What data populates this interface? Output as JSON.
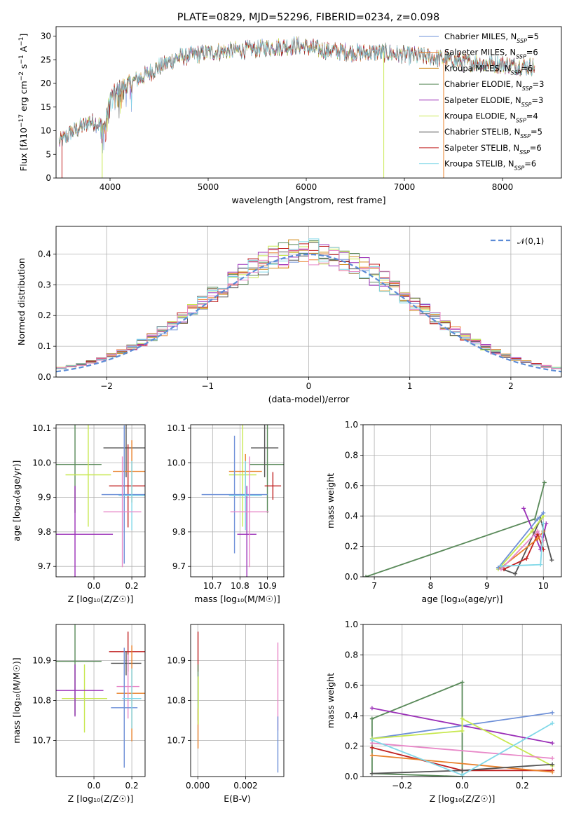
{
  "colors": {
    "Chabrier MILES": "#6e90d8",
    "Salpeter MILES": "#e8802a",
    "Kroupa MILES": "#d08a1a",
    "Chabrier ELODIE": "#5a8a5a",
    "Salpeter ELODIE": "#9b30b8",
    "Kroupa ELODIE": "#c8e850",
    "Chabrier STELIB": "#555555",
    "Salpeter STELIB": "#c02020",
    "Kroupa STELIB": "#80d8e8",
    "normal": "#5b8bd6",
    "pink": "#e888c8",
    "grid": "#b0b0b0"
  },
  "chart_data": [
    {
      "id": "spectrum",
      "type": "line",
      "title": "PLATE=0829, MJD=52296, FIBERID=0234, z=0.098",
      "xlabel": "wavelength [Angstrom, rest frame]",
      "ylabel_parts": {
        "a": "Flux [f",
        "b": "λ",
        "c": "10",
        "d": "−17",
        "e": " erg cm",
        "f": "−2",
        "g": " s",
        "h": "−1",
        "i": " A",
        "j": "−1",
        "k": "]"
      },
      "xlim": [
        3450,
        8600
      ],
      "ylim": [
        0,
        32
      ],
      "xticks": [
        4000,
        5000,
        6000,
        7000,
        8000
      ],
      "yticks": [
        0,
        5,
        10,
        15,
        20,
        25,
        30
      ],
      "grid": false,
      "legend_position": "right",
      "continuum_x": [
        3480,
        3600,
        3800,
        3950,
        4000,
        4100,
        4300,
        4500,
        4700,
        5000,
        5300,
        5600,
        5900,
        6200,
        6500,
        6800,
        7000,
        7300,
        7600,
        8000,
        8300
      ],
      "continuum_y": [
        7.5,
        9.5,
        12,
        11,
        17,
        19,
        21,
        23.5,
        25.5,
        26.5,
        27,
        27.5,
        28,
        27,
        26.5,
        26.5,
        26,
        25.5,
        24.5,
        24,
        23.5
      ],
      "dropouts": [
        {
          "series": "Salpeter STELIB",
          "x": 3510,
          "y": 0
        },
        {
          "series": "Kroupa ELODIE",
          "x": 3920,
          "y": 0
        },
        {
          "series": "Kroupa ELODIE",
          "x": 6790,
          "y": 0
        },
        {
          "series": "Salpeter MILES",
          "x": 7400,
          "y": 0
        }
      ],
      "series": [
        {
          "name": "Chabrier MILES",
          "label": "Chabrier MILES, N",
          "sub": "SSP",
          "n": "=5"
        },
        {
          "name": "Salpeter MILES",
          "label": "Salpeter MILES, N",
          "sub": "SSP",
          "n": "=6"
        },
        {
          "name": "Kroupa MILES",
          "label": "Kroupa MILES, N",
          "sub": "SSP",
          "n": "=6"
        },
        {
          "name": "Chabrier ELODIE",
          "label": "Chabrier ELODIE, N",
          "sub": "SSP",
          "n": "=3"
        },
        {
          "name": "Salpeter ELODIE",
          "label": "Salpeter ELODIE, N",
          "sub": "SSP",
          "n": "=3"
        },
        {
          "name": "Kroupa ELODIE",
          "label": "Kroupa ELODIE, N",
          "sub": "SSP",
          "n": "=4"
        },
        {
          "name": "Chabrier STELIB",
          "label": "Chabrier STELIB, N",
          "sub": "SSP",
          "n": "=5"
        },
        {
          "name": "Salpeter STELIB",
          "label": "Salpeter STELIB, N",
          "sub": "SSP",
          "n": "=6"
        },
        {
          "name": "Kroupa STELIB",
          "label": "Kroupa STELIB, N",
          "sub": "SSP",
          "n": "=6"
        }
      ]
    },
    {
      "id": "residuals",
      "type": "histogram",
      "xlabel": "(data-model)/error",
      "ylabel": "Normed distribution",
      "xlim": [
        -2.5,
        2.5
      ],
      "ylim": [
        0,
        0.49
      ],
      "xticks": [
        -2,
        -1,
        0,
        1,
        2
      ],
      "yticks": [
        0.0,
        0.1,
        0.2,
        0.3,
        0.4
      ],
      "grid": true,
      "bin_width": 0.1,
      "legend_position": "top-right",
      "legend_label": "𝒩(0,1)",
      "series_order": [
        "Chabrier MILES",
        "Salpeter MILES",
        "Kroupa MILES",
        "Chabrier ELODIE",
        "Salpeter ELODIE",
        "Kroupa ELODIE",
        "Chabrier STELIB",
        "Salpeter STELIB",
        "Kroupa STELIB",
        "pink"
      ]
    },
    {
      "id": "age_vs_Z",
      "type": "errorbar",
      "xlabel": "Z [log₁₀(Z/Z☉)]",
      "ylabel": "age  [log₁₀(age/yr)]",
      "xlim": [
        -0.2,
        0.27
      ],
      "ylim": [
        9.67,
        10.11
      ],
      "xticks": [
        0.0,
        0.2
      ],
      "yticks": [
        9.7,
        9.8,
        9.9,
        10.0,
        10.1
      ],
      "grid": true,
      "points": [
        {
          "series": "Chabrier ELODIE",
          "x": -0.1,
          "xerr": 0.14,
          "y": 9.995,
          "yerr": 0.14
        },
        {
          "series": "Kroupa ELODIE",
          "x": -0.03,
          "xerr": 0.12,
          "y": 9.965,
          "yerr": 0.15
        },
        {
          "series": "Salpeter ELODIE",
          "x": -0.1,
          "xerr": 0.2,
          "y": 9.793,
          "yerr": 0.14
        },
        {
          "series": "Chabrier STELIB",
          "x": 0.17,
          "xerr": 0.12,
          "y": 10.043,
          "yerr": 0.085
        },
        {
          "series": "Salpeter STELIB",
          "x": 0.18,
          "xerr": 0.1,
          "y": 9.933,
          "yerr": 0.12
        },
        {
          "series": "Salpeter MILES",
          "x": 0.2,
          "xerr": 0.1,
          "y": 9.975,
          "yerr": 0.09
        },
        {
          "series": "Chabrier MILES",
          "x": 0.16,
          "xerr": 0.12,
          "y": 9.908,
          "yerr": 0.2
        },
        {
          "series": "Kroupa STELIB",
          "x": 0.2,
          "xerr": 0.07,
          "y": 9.905,
          "yerr": 0.1
        },
        {
          "series": "pink",
          "x": 0.15,
          "xerr": 0.1,
          "y": 9.858,
          "yerr": 0.16
        }
      ]
    },
    {
      "id": "age_vs_mass",
      "type": "errorbar",
      "xlabel": "mass [log₁₀(M/M☉)]",
      "xlim": [
        10.62,
        10.96
      ],
      "ylim": [
        9.67,
        10.11
      ],
      "xticks": [
        10.7,
        10.8,
        10.9
      ],
      "yticks": [
        9.7,
        9.8,
        9.9,
        10.0,
        10.1
      ],
      "grid": true,
      "points": [
        {
          "series": "Chabrier ELODIE",
          "x": 10.9,
          "xerr": 0.065,
          "y": 9.995,
          "yerr": 0.14
        },
        {
          "series": "Kroupa ELODIE",
          "x": 10.81,
          "xerr": 0.05,
          "y": 9.965,
          "yerr": 0.15
        },
        {
          "series": "Salpeter ELODIE",
          "x": 10.825,
          "xerr": 0.035,
          "y": 9.793,
          "yerr": 0.14
        },
        {
          "series": "Chabrier STELIB",
          "x": 10.89,
          "xerr": 0.05,
          "y": 10.043,
          "yerr": 0.085
        },
        {
          "series": "Salpeter STELIB",
          "x": 10.92,
          "xerr": 0.03,
          "y": 9.933,
          "yerr": 0.04
        },
        {
          "series": "Salpeter MILES",
          "x": 10.82,
          "xerr": 0.06,
          "y": 9.975,
          "yerr": 0.05
        },
        {
          "series": "Chabrier MILES",
          "x": 10.78,
          "xerr": 0.12,
          "y": 9.908,
          "yerr": 0.17
        },
        {
          "series": "Kroupa STELIB",
          "x": 10.82,
          "xerr": 0.06,
          "y": 9.905,
          "yerr": 0.1
        },
        {
          "series": "pink",
          "x": 10.835,
          "xerr": 0.07,
          "y": 9.858,
          "yerr": 0.16
        }
      ]
    },
    {
      "id": "mass_weight_vs_age",
      "type": "line",
      "xlabel": "age  [log₁₀(age/yr)]",
      "ylabel": "mass weight",
      "xlim": [
        6.8,
        10.32
      ],
      "ylim": [
        0,
        1.0
      ],
      "xticks": [
        7,
        8,
        9,
        10
      ],
      "yticks": [
        0.0,
        0.2,
        0.4,
        0.6,
        0.8,
        1.0
      ],
      "grid": true,
      "series": [
        {
          "name": "Chabrier ELODIE",
          "x": [
            6.85,
            9.85,
            10.02
          ],
          "y": [
            0.0,
            0.38,
            0.62
          ]
        },
        {
          "name": "Salpeter ELODIE",
          "x": [
            9.65,
            9.95,
            10.05
          ],
          "y": [
            0.45,
            0.18,
            0.35
          ]
        },
        {
          "name": "Chabrier STELIB",
          "x": [
            9.2,
            9.5,
            9.95,
            10.15
          ],
          "y": [
            0.06,
            0.02,
            0.38,
            0.11
          ]
        },
        {
          "name": "Salpeter STELIB",
          "x": [
            9.3,
            9.7,
            9.9,
            10.0
          ],
          "y": [
            0.05,
            0.12,
            0.28,
            0.18
          ]
        },
        {
          "name": "Kroupa ELODIE",
          "x": [
            9.2,
            9.8,
            10.0
          ],
          "y": [
            0.05,
            0.3,
            0.4
          ]
        },
        {
          "name": "Chabrier MILES",
          "x": [
            9.2,
            9.9,
            10.0
          ],
          "y": [
            0.06,
            0.38,
            0.42
          ]
        },
        {
          "name": "Salpeter MILES",
          "x": [
            9.25,
            9.9,
            10.0
          ],
          "y": [
            0.06,
            0.25,
            0.3
          ]
        },
        {
          "name": "pink",
          "x": [
            9.25,
            9.9,
            10.0
          ],
          "y": [
            0.05,
            0.3,
            0.24
          ]
        },
        {
          "name": "Kroupa STELIB",
          "x": [
            9.25,
            9.95,
            10.0
          ],
          "y": [
            0.07,
            0.08,
            0.35
          ]
        }
      ]
    },
    {
      "id": "mass_vs_Z",
      "type": "errorbar",
      "xlabel": "Z [log₁₀(Z/Z☉)]",
      "ylabel": "mass [log₁₀(M/M☉)]",
      "xlim": [
        -0.2,
        0.27
      ],
      "ylim": [
        10.61,
        10.99
      ],
      "xticks": [
        0.0,
        0.2
      ],
      "yticks": [
        10.7,
        10.8,
        10.9
      ],
      "grid": true,
      "points": [
        {
          "series": "Chabrier ELODIE",
          "x": -0.1,
          "xerr": 0.14,
          "y": 10.898,
          "yerr": 0.135
        },
        {
          "series": "Kroupa ELODIE",
          "x": -0.05,
          "xerr": 0.12,
          "y": 10.805,
          "yerr": 0.085
        },
        {
          "series": "Salpeter ELODIE",
          "x": -0.1,
          "xerr": 0.15,
          "y": 10.825,
          "yerr": 0.065
        },
        {
          "series": "Salpeter STELIB",
          "x": 0.18,
          "xerr": 0.1,
          "y": 10.922,
          "yerr": 0.05
        },
        {
          "series": "Chabrier STELIB",
          "x": 0.17,
          "xerr": 0.08,
          "y": 10.893,
          "yerr": 0.03
        },
        {
          "series": "Salpeter MILES",
          "x": 0.2,
          "xerr": 0.08,
          "y": 10.818,
          "yerr": 0.12
        },
        {
          "series": "pink",
          "x": 0.18,
          "xerr": 0.06,
          "y": 10.835,
          "yerr": 0.08
        },
        {
          "series": "Chabrier MILES",
          "x": 0.16,
          "xerr": 0.07,
          "y": 10.782,
          "yerr": 0.15
        },
        {
          "series": "Kroupa STELIB",
          "x": 0.2,
          "xerr": 0.05,
          "y": 10.805,
          "yerr": 0.075
        }
      ]
    },
    {
      "id": "mass_vs_ebv",
      "type": "errorbar",
      "xlabel": "E(B-V)",
      "xlim": [
        -0.0003,
        0.0036
      ],
      "ylim": [
        10.61,
        10.99
      ],
      "xticks": [
        0.0,
        0.002
      ],
      "xtick_labels": [
        "0.000",
        "0.002"
      ],
      "yticks": [
        10.7,
        10.8,
        10.9
      ],
      "grid": true,
      "points": [
        {
          "series": "Salpeter STELIB",
          "x": 1e-05,
          "y": 10.922,
          "yerr": 0.05
        },
        {
          "series": "Chabrier ELODIE",
          "x": 1e-05,
          "y": 10.82,
          "yerr": 0.07
        },
        {
          "series": "Salpeter MILES",
          "x": 1e-05,
          "y": 10.73,
          "yerr": 0.05
        },
        {
          "series": "Kroupa ELODIE",
          "x": 2e-05,
          "y": 10.8,
          "yerr": 0.06
        },
        {
          "series": "pink",
          "x": 0.00335,
          "y": 10.835,
          "yerr": 0.11
        },
        {
          "series": "Chabrier MILES",
          "x": 0.00335,
          "y": 10.69,
          "yerr": 0.07
        }
      ]
    },
    {
      "id": "mass_weight_vs_Z",
      "type": "line",
      "xlabel": "Z [log₁₀(Z/Z☉)]",
      "ylabel": "mass weight",
      "xlim": [
        -0.33,
        0.33
      ],
      "ylim": [
        0,
        1.0
      ],
      "xticks": [
        -0.2,
        0.0,
        0.2
      ],
      "xtick_labels": [
        "−0.2",
        "0.0",
        "0.2"
      ],
      "yticks": [
        0.0,
        0.2,
        0.4,
        0.6,
        0.8,
        1.0
      ],
      "grid": true,
      "series": [
        {
          "name": "Chabrier ELODIE",
          "x": [
            -0.3,
            0.0,
            0.0,
            -0.3,
            -0.3
          ],
          "y": [
            0.38,
            0.62,
            0.0,
            0.02,
            0.38
          ]
        },
        {
          "name": "Salpeter ELODIE",
          "x": [
            -0.3,
            0.3
          ],
          "y": [
            0.45,
            0.22
          ]
        },
        {
          "name": "Chabrier MILES",
          "x": [
            -0.3,
            0.3
          ],
          "y": [
            0.25,
            0.42
          ]
        },
        {
          "name": "Kroupa ELODIE",
          "x": [
            -0.3,
            0.0,
            0.0,
            0.3
          ],
          "y": [
            0.25,
            0.3,
            0.38,
            0.07
          ]
        },
        {
          "name": "Salpeter STELIB",
          "x": [
            -0.3,
            0.0,
            0.3
          ],
          "y": [
            0.19,
            0.04,
            0.04
          ]
        },
        {
          "name": "Salpeter MILES",
          "x": [
            -0.3,
            0.3
          ],
          "y": [
            0.14,
            0.03
          ]
        },
        {
          "name": "pink",
          "x": [
            -0.3,
            0.3
          ],
          "y": [
            0.22,
            0.12
          ]
        },
        {
          "name": "Chabrier STELIB",
          "x": [
            -0.3,
            0.0,
            0.3
          ],
          "y": [
            0.02,
            0.04,
            0.08
          ]
        },
        {
          "name": "Kroupa STELIB",
          "x": [
            -0.3,
            0.0,
            0.3
          ],
          "y": [
            0.24,
            0.01,
            0.35
          ]
        }
      ]
    }
  ]
}
